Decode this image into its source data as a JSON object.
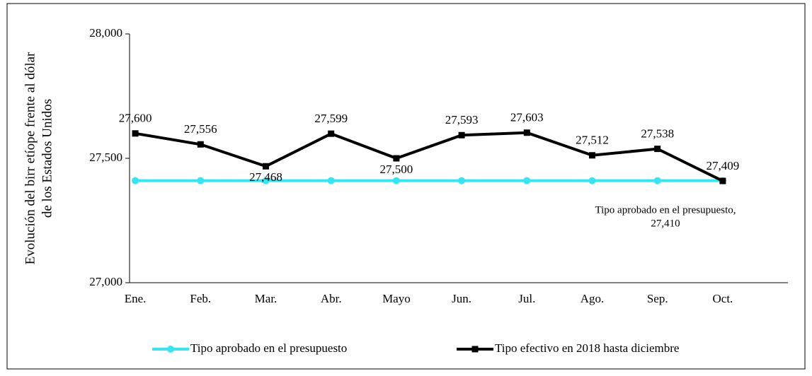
{
  "chart_data": {
    "type": "line",
    "y_label": [
      "Evolución del birr etíope frente al dólar",
      "de los Estados Unidos"
    ],
    "categories": [
      "Ene.",
      "Feb.",
      "Mar.",
      "Abr.",
      "Mayo",
      "Jun.",
      "Jul.",
      "Ago.",
      "Sep.",
      "Oct."
    ],
    "series": [
      {
        "name": "Tipo aprobado en el presupuesto",
        "color": "#33e6f2",
        "marker": "circle",
        "values": [
          27.41,
          27.41,
          27.41,
          27.41,
          27.41,
          27.41,
          27.41,
          27.41,
          27.41,
          27.41
        ]
      },
      {
        "name": "Tipo efectivo en 2018 hasta diciembre",
        "color": "#000000",
        "marker": "square",
        "values": [
          27.6,
          27.556,
          27.468,
          27.599,
          27.5,
          27.593,
          27.603,
          27.512,
          27.538,
          27.409
        ],
        "value_labels": [
          "27,600",
          "27,556",
          "27,468",
          "27,599",
          "27,500",
          "27,593",
          "27,603",
          "27,512",
          "27,538",
          "27,409"
        ]
      }
    ],
    "annotations": [
      "Tipo aprobado en el presupuesto,",
      "27,410"
    ],
    "ylim": [
      27,
      28
    ],
    "yticks": [
      {
        "value": 27,
        "label": "27,000"
      },
      {
        "value": 27.5,
        "label": "27,500"
      },
      {
        "value": 28,
        "label": "28,000"
      }
    ],
    "legend": "bottom"
  }
}
